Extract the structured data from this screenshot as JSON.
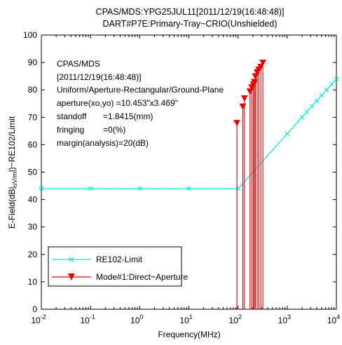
{
  "chart_data": {
    "type": "line",
    "title_lines": [
      "CPAS/MDS:YPG25JUL11[2011/12/19(16:48:48)]",
      "DART#P7E:Primary-Tray~CRIO(Unshielded)"
    ],
    "xlabel": "Frequency(MHz)",
    "ylabel": "E-Field(dB|uV/m|)~RE102/Limit",
    "x_scale": "log",
    "xlim": [
      0.01,
      10000
    ],
    "ylim": [
      0,
      100
    ],
    "x_tick_values": [
      0.01,
      0.1,
      1,
      10,
      100,
      1000,
      10000
    ],
    "x_tick_labels": [
      {
        "base": "10",
        "exp": "-2"
      },
      {
        "base": "10",
        "exp": "-1"
      },
      {
        "base": "10",
        "exp": "0"
      },
      {
        "base": "10",
        "exp": "1"
      },
      {
        "base": "10",
        "exp": "2"
      },
      {
        "base": "10",
        "exp": "3"
      },
      {
        "base": "10",
        "exp": "4"
      }
    ],
    "y_ticks": [
      0,
      10,
      20,
      30,
      40,
      50,
      60,
      70,
      80,
      90,
      100
    ],
    "grid": false,
    "legend_position": "bottom-left",
    "annotation_lines": [
      "CPAS/MDS",
      "[2011/12/19(16:48:48)]",
      "Uniform/Aperture-Rectangular/Ground-Plane",
      "aperture(xo,yo) =10.453\"x3.469\"",
      "standoff       =1.8415(mm)",
      "fringing        =0(%)",
      "margin(analysis)=20(dB)"
    ],
    "series": [
      {
        "name": "RE102-Limit",
        "color": "#00e5e5",
        "marker": "x",
        "style": "line",
        "x": [
          0.01,
          0.1,
          1,
          10,
          100,
          1000,
          10000
        ],
        "y": [
          44,
          44,
          44,
          44,
          44,
          64,
          84
        ],
        "marker_x": [
          0.01,
          0.1,
          1,
          10,
          100,
          1000,
          2000,
          2500,
          3200,
          4000,
          5000,
          6300,
          8000,
          10000
        ],
        "marker_y": [
          44,
          44,
          44,
          44,
          44,
          64,
          70,
          72,
          74,
          76,
          78,
          80,
          82,
          84
        ]
      },
      {
        "name": "Mode#1:Direct~Aperture",
        "color": "#e60000",
        "marker": "triangle-down",
        "style": "stem",
        "x": [
          95,
          125,
          135,
          175,
          190,
          205,
          215,
          225,
          245,
          265,
          290,
          320
        ],
        "y": [
          68,
          74,
          77,
          79.5,
          81,
          82,
          83,
          85,
          86.5,
          87.5,
          88.5,
          90
        ]
      }
    ]
  }
}
